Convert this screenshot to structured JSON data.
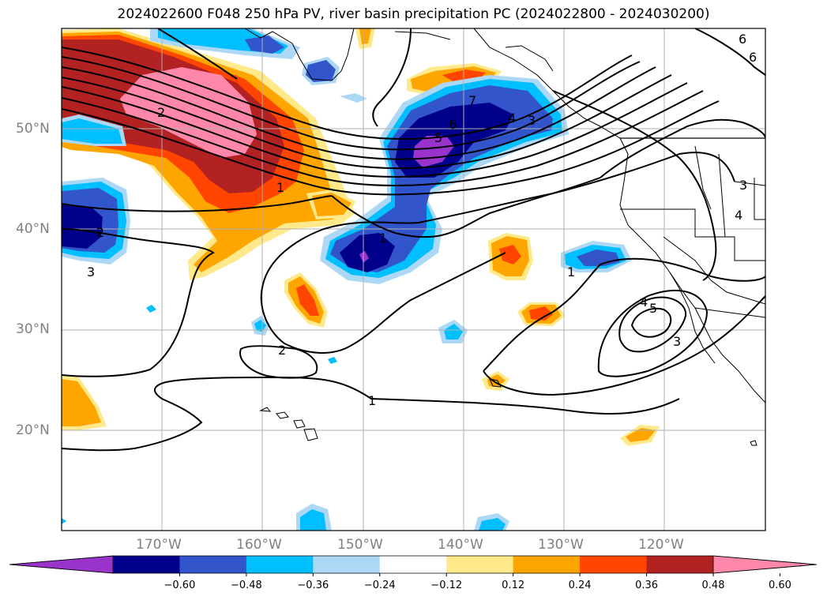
{
  "title": "2024022600 F048 250 hPa PV, river basin precipitation PC (2024022800 - 2024030200)",
  "lat_labels": [
    "50°N",
    "40°N",
    "30°N",
    "20°N"
  ],
  "lon_labels": [
    "170°W",
    "160°W",
    "150°W",
    "140°W",
    "130°W",
    "120°W"
  ],
  "colorbar": {
    "ticks": [
      "−0.60",
      "−0.48",
      "−0.36",
      "−0.24",
      "−0.12",
      "0.12",
      "0.24",
      "0.36",
      "0.48",
      "0.60"
    ],
    "colors": [
      "#9933cc",
      "#00008b",
      "#3355cc",
      "#00bfff",
      "#add8f5",
      "#ffffff",
      "#ffe98a",
      "#ffa500",
      "#ff4500",
      "#b22222",
      "#ff88aa"
    ]
  },
  "contour_labels": [
    "1",
    "2",
    "3",
    "4",
    "5",
    "6",
    "7",
    "1",
    "2",
    "3",
    "1",
    "2",
    "1",
    "4",
    "5",
    "3",
    "6",
    "4",
    "3",
    "6"
  ],
  "fill_colors": {
    "pink": "#ff88aa",
    "darkred": "#b22222",
    "orangered": "#ff4500",
    "orange": "#ffa500",
    "yellow": "#ffe98a",
    "lightblue": "#add8f5",
    "deepsky": "#00bfff",
    "royal": "#3355cc",
    "navy": "#00008b",
    "purple": "#9933cc"
  }
}
